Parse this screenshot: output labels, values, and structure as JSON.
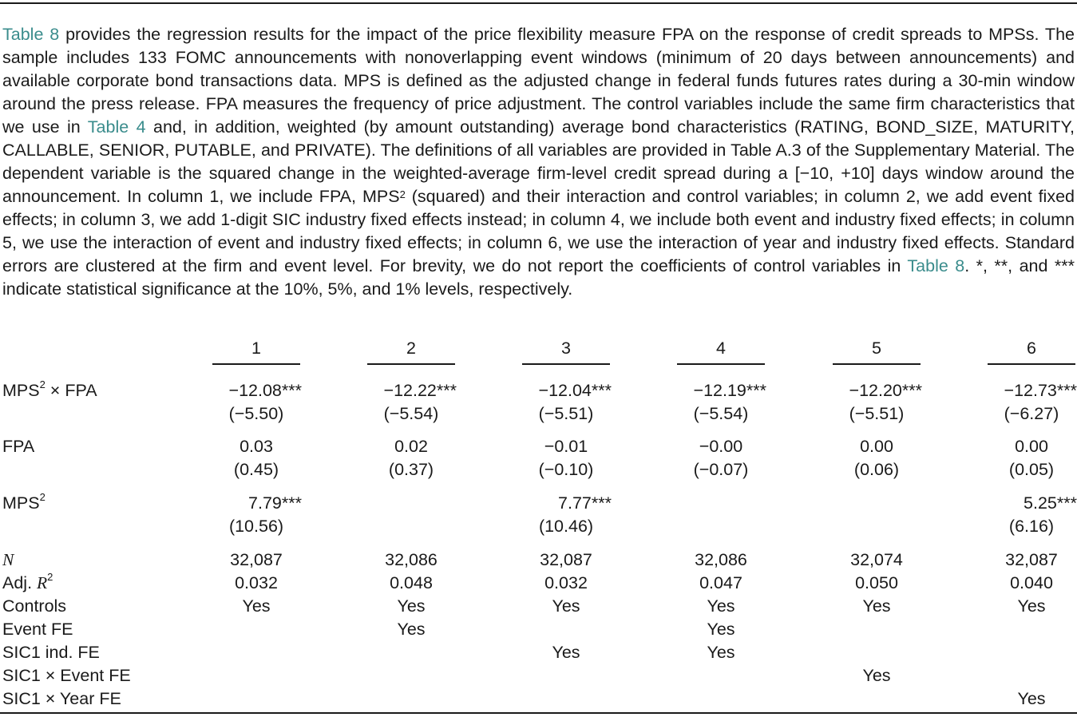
{
  "caption": {
    "ref_table8_a": "Table 8",
    "p1": " provides the regression results for the impact of the price flexibility measure FPA on the response of credit spreads to MPSs. The sample includes 133 FOMC announcements with nonoverlapping event windows (minimum of 20 days between announcements) and available corporate bond transactions data. MPS is defined as the adjusted change in federal funds futures rates during a 30-min window around the press release. FPA measures the frequency of price adjustment. The control variables include the same firm characteristics that we use in ",
    "ref_table4": "Table 4",
    "p2": " and, in addition, weighted (by amount outstanding) average bond characteristics (RATING, BOND_SIZE, MATURITY, CALLABLE, SENIOR, PUTABLE, and PRIVATE). The definitions of all variables are provided in Table A.3 of the Supplementary Material. The dependent variable is the squared change in the weighted-average firm-level credit spread during a [−10, +10] days window around the announcement. In column 1, we include FPA, MPS",
    "p2_sup": "2",
    "p3": " (squared) and their interaction and control variables; in column 2, we add event fixed effects; in column 3, we add 1-digit SIC industry fixed effects instead; in column 4, we include both event and industry fixed effects; in column 5, we use the interaction of event and industry fixed effects; in column 6, we use the interaction of year and industry fixed effects. Standard errors are clustered at the firm and event level. For brevity, we do not report the coefficients of control variables in ",
    "ref_table8_b": "Table 8",
    "p4": ". *, **, and *** indicate statistical significance at the 10%, 5%, and 1% levels, respectively."
  },
  "table": {
    "columns": [
      "1",
      "2",
      "3",
      "4",
      "5",
      "6"
    ],
    "row_labels": {
      "interaction_pre": "MPS",
      "interaction_sup": "2",
      "interaction_post": " × FPA",
      "fpa": "FPA",
      "mps2_pre": "MPS",
      "mps2_sup": "2",
      "n": "N",
      "adjr2_pre": "Adj. ",
      "adjr2_r": "R",
      "adjr2_sup": "2",
      "controls": "Controls",
      "event_fe": "Event FE",
      "sic1_fe": "SIC1 ind. FE",
      "sic1_event": "SIC1 × Event FE",
      "sic1_year": "SIC1 × Year FE"
    },
    "interaction_coef": [
      "−12.08***",
      "−12.22***",
      "−12.04***",
      "−12.19***",
      "−12.20***",
      "−12.73***"
    ],
    "interaction_t": [
      "(−5.50)",
      "(−5.54)",
      "(−5.51)",
      "(−5.54)",
      "(−5.51)",
      "(−6.27)"
    ],
    "fpa_coef": [
      "0.03",
      "0.02",
      "−0.01",
      "−0.00",
      "0.00",
      "0.00"
    ],
    "fpa_t": [
      "(0.45)",
      "(0.37)",
      "(−0.10)",
      "(−0.07)",
      "(0.06)",
      "(0.05)"
    ],
    "mps2_coef": [
      "7.79***",
      "",
      "7.77***",
      "",
      "",
      "5.25***"
    ],
    "mps2_t": [
      "(10.56)",
      "",
      "(10.46)",
      "",
      "",
      "(6.16)"
    ],
    "n": [
      "32,087",
      "32,086",
      "32,087",
      "32,086",
      "32,074",
      "32,087"
    ],
    "adjr2": [
      "0.032",
      "0.048",
      "0.032",
      "0.047",
      "0.050",
      "0.040"
    ],
    "controls": [
      "Yes",
      "Yes",
      "Yes",
      "Yes",
      "Yes",
      "Yes"
    ],
    "event_fe": [
      "",
      "Yes",
      "",
      "Yes",
      "",
      ""
    ],
    "sic1_fe": [
      "",
      "",
      "Yes",
      "Yes",
      "",
      ""
    ],
    "sic1_event": [
      "",
      "",
      "",
      "",
      "Yes",
      ""
    ],
    "sic1_year": [
      "",
      "",
      "",
      "",
      "",
      "Yes"
    ]
  }
}
